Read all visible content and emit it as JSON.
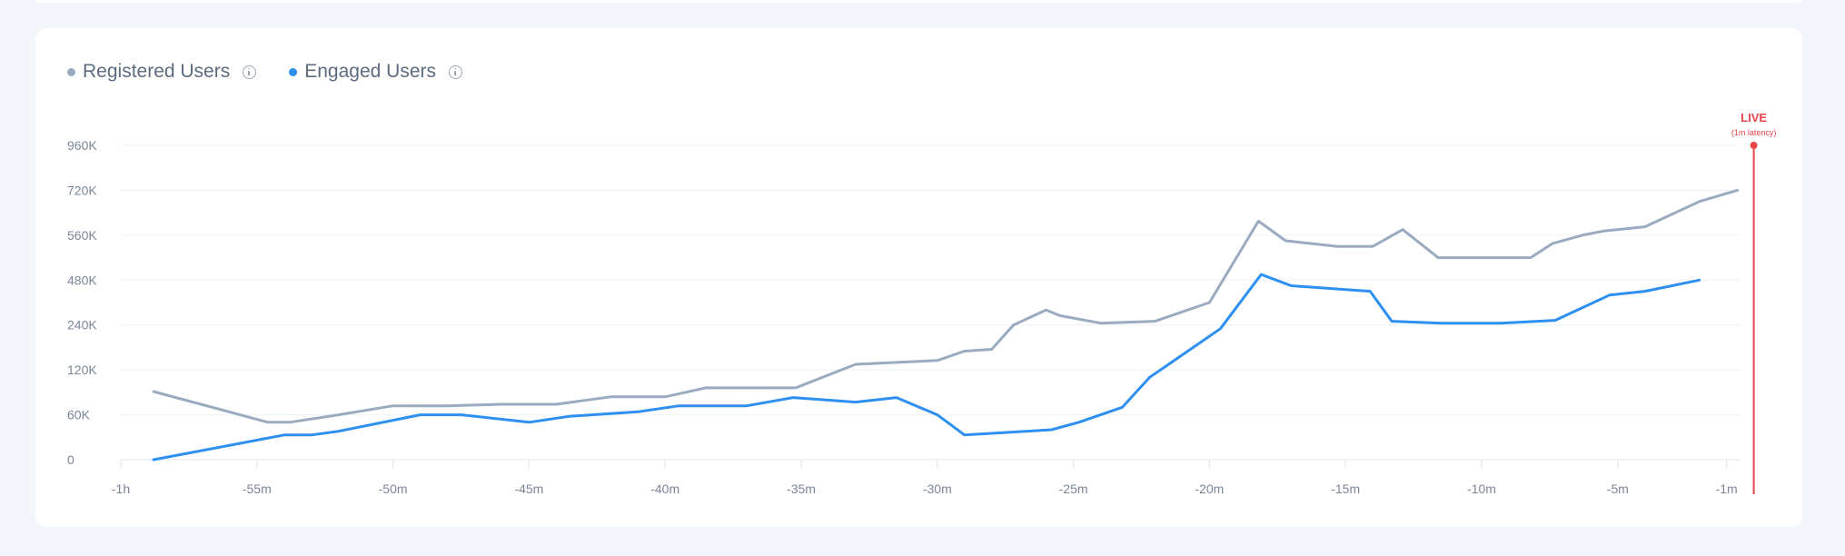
{
  "legend": [
    {
      "label": "Registered Users",
      "color": "#9aaabf",
      "icon": "info-icon"
    },
    {
      "label": "Engaged Users",
      "color": "#2d8ff0",
      "icon": "info-icon"
    }
  ],
  "live": {
    "label": "LIVE",
    "sublabel": "(1m latency)",
    "color": "#e8454b"
  },
  "chart_data": {
    "type": "line",
    "y_tick_labels": [
      "0",
      "60K",
      "120K",
      "240K",
      "480K",
      "560K",
      "720K",
      "960K"
    ],
    "x_tick_labels": [
      "-1h",
      "-55m",
      "-50m",
      "-45m",
      "-40m",
      "-35m",
      "-30m",
      "-25m",
      "-20m",
      "-15m",
      "-10m",
      "-5m",
      "-1m"
    ],
    "x_tick_values": [
      -60,
      -55,
      -50,
      -45,
      -40,
      -35,
      -30,
      -25,
      -20,
      -15,
      -10,
      -5,
      -1
    ],
    "xlim": [
      -60,
      0
    ],
    "grid": true,
    "legend_position": "top-left",
    "series": [
      {
        "name": "Registered Users",
        "color": "#9aaabf",
        "points": [
          [
            -58.8,
            91000
          ],
          [
            -54.6,
            50000
          ],
          [
            -53.8,
            50000
          ],
          [
            -52.0,
            60000
          ],
          [
            -50.0,
            72000
          ],
          [
            -48.0,
            72000
          ],
          [
            -46.0,
            74000
          ],
          [
            -44.0,
            74000
          ],
          [
            -43.2,
            78000
          ],
          [
            -42.0,
            84000
          ],
          [
            -40.0,
            84000
          ],
          [
            -38.5,
            96000
          ],
          [
            -35.2,
            96000
          ],
          [
            -33.0,
            135000
          ],
          [
            -30.0,
            145000
          ],
          [
            -29.0,
            170000
          ],
          [
            -28.0,
            175000
          ],
          [
            -27.2,
            240000
          ],
          [
            -26.0,
            320000
          ],
          [
            -25.5,
            290000
          ],
          [
            -24.0,
            250000
          ],
          [
            -22.0,
            260000
          ],
          [
            -20.0,
            360000
          ],
          [
            -18.2,
            610000
          ],
          [
            -17.2,
            550000
          ],
          [
            -15.3,
            540000
          ],
          [
            -14.0,
            540000
          ],
          [
            -12.9,
            580000
          ],
          [
            -11.6,
            520000
          ],
          [
            -9.2,
            520000
          ],
          [
            -8.2,
            520000
          ],
          [
            -7.4,
            545000
          ],
          [
            -6.3,
            560000
          ],
          [
            -5.5,
            575000
          ],
          [
            -4.0,
            590000
          ],
          [
            -2.0,
            680000
          ],
          [
            -0.6,
            720000
          ]
        ]
      },
      {
        "name": "Engaged Users",
        "color": "#2d8ff0",
        "points": [
          [
            -58.8,
            0
          ],
          [
            -54.0,
            33000
          ],
          [
            -53.0,
            33000
          ],
          [
            -52.0,
            38000
          ],
          [
            -49.0,
            60000
          ],
          [
            -47.5,
            60000
          ],
          [
            -45.0,
            50000
          ],
          [
            -43.5,
            58000
          ],
          [
            -41.0,
            64000
          ],
          [
            -39.5,
            72000
          ],
          [
            -37.0,
            72000
          ],
          [
            -35.3,
            83000
          ],
          [
            -33.0,
            77000
          ],
          [
            -31.5,
            83000
          ],
          [
            -30.0,
            60000
          ],
          [
            -29.0,
            33000
          ],
          [
            -25.8,
            40000
          ],
          [
            -24.8,
            50000
          ],
          [
            -23.2,
            70000
          ],
          [
            -22.2,
            110000
          ],
          [
            -19.6,
            230000
          ],
          [
            -18.1,
            490000
          ],
          [
            -17.0,
            450000
          ],
          [
            -14.1,
            420000
          ],
          [
            -13.3,
            260000
          ],
          [
            -11.5,
            250000
          ],
          [
            -9.3,
            250000
          ],
          [
            -7.3,
            265000
          ],
          [
            -5.3,
            400000
          ],
          [
            -4.0,
            420000
          ],
          [
            -2.0,
            480000
          ]
        ]
      }
    ]
  }
}
